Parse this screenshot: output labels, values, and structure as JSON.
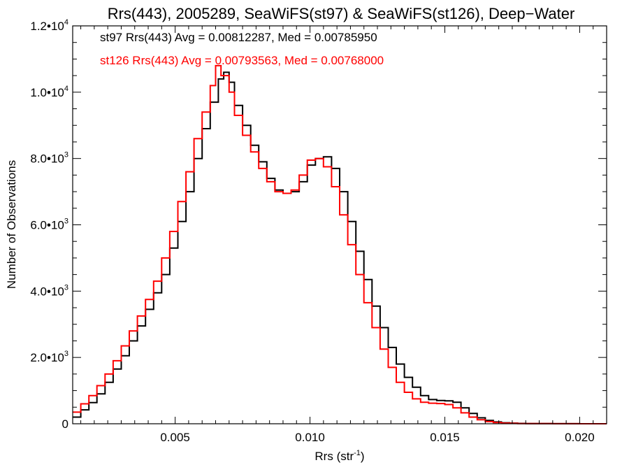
{
  "chart_data": {
    "type": "line",
    "title": "Rrs(443), 2005289, SeaWiFS(st97) & SeaWiFS(st126), Deep−Water",
    "xlabel": "Rrs (str",
    "xlabel_sup": "-1",
    "xlabel_close": ")",
    "ylabel": "Number of Observations",
    "xlim": [
      0.0012,
      0.021
    ],
    "ylim": [
      0,
      12000
    ],
    "x_ticks": [
      {
        "value": 0.005,
        "label": "0.005"
      },
      {
        "value": 0.01,
        "label": "0.010"
      },
      {
        "value": 0.015,
        "label": "0.015"
      },
      {
        "value": 0.02,
        "label": "0.020"
      }
    ],
    "y_ticks": [
      {
        "value": 0,
        "mant": "0",
        "exp": ""
      },
      {
        "value": 2000,
        "mant": "2.0•10",
        "exp": "3"
      },
      {
        "value": 4000,
        "mant": "4.0•10",
        "exp": "3"
      },
      {
        "value": 6000,
        "mant": "6.0•10",
        "exp": "3"
      },
      {
        "value": 8000,
        "mant": "8.0•10",
        "exp": "3"
      },
      {
        "value": 10000,
        "mant": "1.0•10",
        "exp": "4"
      },
      {
        "value": 12000,
        "mant": "1.2•10",
        "exp": "4"
      }
    ],
    "annotations": [
      {
        "text": "st97 Rrs(443) Avg = 0.00812287, Med = 0.00785950",
        "color": "#000000"
      },
      {
        "text": "st126 Rrs(443) Avg = 0.00793563, Med = 0.00768000",
        "color": "#ff0000"
      }
    ],
    "series": [
      {
        "color": "#000000",
        "x": [
          0.0012,
          0.0015,
          0.0018,
          0.0021,
          0.0024,
          0.0027,
          0.003,
          0.0033,
          0.0036,
          0.0039,
          0.0042,
          0.0045,
          0.0048,
          0.0051,
          0.0054,
          0.0057,
          0.006,
          0.0063,
          0.0066,
          0.0068,
          0.007,
          0.0072,
          0.0075,
          0.0078,
          0.0081,
          0.0084,
          0.0087,
          0.009,
          0.0093,
          0.0096,
          0.0099,
          0.0102,
          0.0105,
          0.0108,
          0.0111,
          0.0114,
          0.0117,
          0.012,
          0.0123,
          0.0126,
          0.0129,
          0.0132,
          0.0135,
          0.0138,
          0.0141,
          0.0144,
          0.0147,
          0.015,
          0.0153,
          0.0156,
          0.0159,
          0.0162,
          0.0165,
          0.0168,
          0.0171,
          0.0174,
          0.0177,
          0.018,
          0.019,
          0.02,
          0.021
        ],
        "y": [
          200,
          420,
          640,
          900,
          1250,
          1650,
          2050,
          2500,
          2950,
          3450,
          3950,
          4500,
          5300,
          6100,
          7000,
          8000,
          8900,
          9700,
          10400,
          10600,
          10300,
          9600,
          9000,
          8400,
          7900,
          7400,
          7050,
          6950,
          7000,
          7300,
          7800,
          8000,
          8050,
          7700,
          7000,
          6100,
          5200,
          4350,
          3550,
          2900,
          2300,
          1800,
          1400,
          1100,
          850,
          730,
          700,
          690,
          650,
          480,
          310,
          180,
          100,
          55,
          30,
          18,
          10,
          6,
          3,
          1,
          0
        ]
      },
      {
        "color": "#ff0000",
        "x": [
          0.0012,
          0.0015,
          0.0018,
          0.0021,
          0.0024,
          0.0027,
          0.003,
          0.0033,
          0.0036,
          0.0039,
          0.0042,
          0.0045,
          0.0048,
          0.0051,
          0.0054,
          0.0057,
          0.006,
          0.0063,
          0.0065,
          0.0067,
          0.007,
          0.0072,
          0.0075,
          0.0078,
          0.0081,
          0.0084,
          0.0087,
          0.009,
          0.0093,
          0.0096,
          0.0099,
          0.0102,
          0.0105,
          0.0108,
          0.0111,
          0.0114,
          0.0117,
          0.012,
          0.0123,
          0.0126,
          0.0129,
          0.0132,
          0.0135,
          0.0138,
          0.0141,
          0.0144,
          0.0147,
          0.015,
          0.0153,
          0.0156,
          0.0159,
          0.0162,
          0.0165,
          0.0168,
          0.0171,
          0.0174,
          0.0177,
          0.018,
          0.019,
          0.02,
          0.021
        ],
        "y": [
          350,
          600,
          850,
          1150,
          1500,
          1900,
          2350,
          2800,
          3250,
          3750,
          4300,
          5000,
          5800,
          6700,
          7600,
          8600,
          9400,
          10200,
          10800,
          10500,
          10000,
          9300,
          8700,
          8200,
          7700,
          7300,
          7000,
          6950,
          7050,
          7500,
          7950,
          8000,
          7750,
          7150,
          6300,
          5400,
          4500,
          3650,
          2900,
          2250,
          1700,
          1250,
          950,
          750,
          650,
          620,
          610,
          580,
          480,
          330,
          200,
          120,
          65,
          35,
          20,
          12,
          7,
          4,
          2,
          1,
          0
        ]
      }
    ]
  }
}
